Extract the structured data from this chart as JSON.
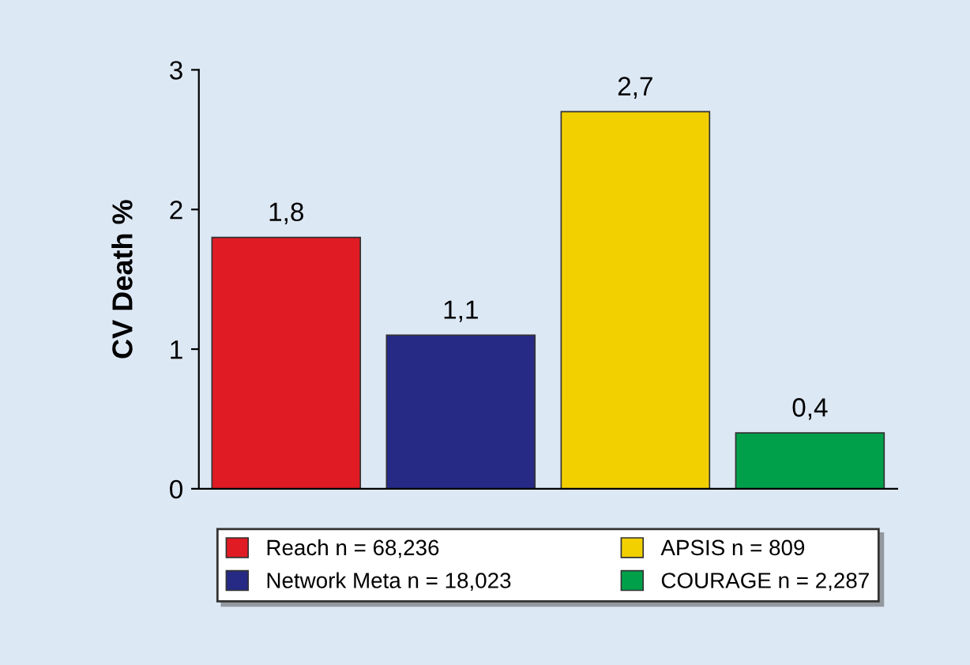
{
  "chart_data": {
    "type": "bar",
    "ylabel": "CV Death %",
    "categories": [
      null,
      null,
      null,
      null
    ],
    "series": [
      {
        "name": "Reach n = 68,236",
        "color": "#e01b24",
        "values": [
          1.8,
          null,
          null,
          null
        ],
        "value_labels": [
          "1,8",
          null,
          null,
          null
        ]
      },
      {
        "name": "Network Meta n = 18,023",
        "color": "#262a85",
        "values": [
          null,
          1.1,
          null,
          null
        ],
        "value_labels": [
          null,
          "1,1",
          null,
          null
        ]
      },
      {
        "name": "APSIS n = 809",
        "color": "#f2d000",
        "values": [
          null,
          null,
          2.7,
          null
        ],
        "value_labels": [
          null,
          null,
          "2,7",
          null
        ]
      },
      {
        "name": "COURAGE n = 2,287",
        "color": "#00a04a",
        "values": [
          null,
          null,
          null,
          0.4
        ],
        "value_labels": [
          null,
          null,
          null,
          "0,4"
        ]
      }
    ],
    "ylim": [
      0,
      3
    ],
    "yticks": [
      0,
      1,
      2,
      3
    ],
    "grid": false,
    "legend": "bottom"
  }
}
